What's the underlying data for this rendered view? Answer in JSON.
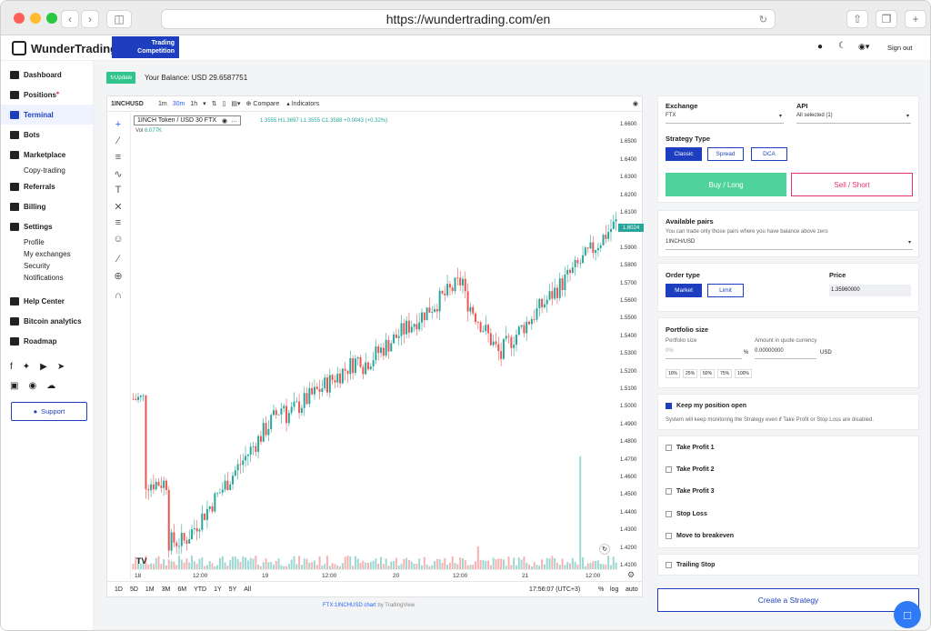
{
  "browser": {
    "url": "https://wundertrading.com/en"
  },
  "header": {
    "brand": "WunderTrading",
    "banner_line1": "Trading",
    "banner_line2": "Competition",
    "signout": "Sign out"
  },
  "sidebar": {
    "items": [
      {
        "label": "Dashboard"
      },
      {
        "label": "Positions"
      },
      {
        "label": "Terminal"
      },
      {
        "label": "Bots"
      },
      {
        "label": "Marketplace"
      },
      {
        "label": "Copy-trading"
      },
      {
        "label": "Referrals"
      },
      {
        "label": "Billing"
      },
      {
        "label": "Settings"
      },
      {
        "label": "Profile"
      },
      {
        "label": "My exchanges"
      },
      {
        "label": "Security"
      },
      {
        "label": "Notifications"
      },
      {
        "label": "Help Center"
      },
      {
        "label": "Bitcoin analytics"
      },
      {
        "label": "Roadmap"
      }
    ],
    "support": "Support"
  },
  "balance": {
    "update": "Update",
    "label": "Your Balance:",
    "value": "USD 29.6587751"
  },
  "chart": {
    "symbol": "1INCHUSD",
    "intervals": [
      "1m",
      "30m",
      "1h"
    ],
    "compare": "Compare",
    "indicators": "Indicators",
    "legend_title": "1INCH Token / USD  30  FTX",
    "ohlc": "1.3555 H1.3697 L1.3555 C1.3588 +0.0043 (+0.32%)",
    "vol_label": "Vol",
    "vol_value": "6.077K",
    "last_price": "1.6024",
    "yticks": [
      "1.6600",
      "1.6500",
      "1.6400",
      "1.6300",
      "1.6200",
      "1.6100",
      "1.6000",
      "1.5900",
      "1.5800",
      "1.5700",
      "1.5600",
      "1.5500",
      "1.5400",
      "1.5300",
      "1.5200",
      "1.5100",
      "1.5000",
      "1.4900",
      "1.4800",
      "1.4700",
      "1.4600",
      "1.4500",
      "1.4400",
      "1.4300",
      "1.4200",
      "1.4100"
    ],
    "xticks": [
      "18",
      "12:00",
      "19",
      "12:00",
      "20",
      "12:00",
      "21",
      "12:00"
    ],
    "ranges": [
      "1D",
      "5D",
      "1M",
      "3M",
      "6M",
      "YTD",
      "1Y",
      "5Y",
      "All"
    ],
    "time": "17:56:07 (UTC+3)",
    "percent": "%",
    "log": "log",
    "auto": "auto",
    "footer_link": "FTX:1INCHUSD chart",
    "footer_by": "by TradingView",
    "colors": {
      "up": "#26a69a",
      "down": "#ef5350"
    }
  },
  "panel": {
    "exchange_label": "Exchange",
    "exchange_value": "FTX",
    "api_label": "API",
    "api_value": "All selected (1)",
    "strategy_type_label": "Strategy Type",
    "strategy_types": [
      "Classic",
      "Spread",
      "DCA"
    ],
    "buy": "Buy / Long",
    "sell": "Sell / Short",
    "pairs_label": "Available pairs",
    "pairs_hint": "You can trade only those pairs where you have balance above zero",
    "pairs_value": "1INCH/USD",
    "order_type_label": "Order type",
    "order_types": [
      "Market",
      "Limit"
    ],
    "price_label": "Price",
    "price_value": "1.35960000",
    "portfolio_label": "Portfolio size",
    "portfolio_size_label": "Portfolio size",
    "portfolio_size_value": "0%",
    "percent_sign": "%",
    "amount_label": "Amount in quote currency",
    "amount_value": "0.00000000",
    "amount_unit": "USD",
    "pcts": [
      "10%",
      "25%",
      "50%",
      "75%",
      "100%"
    ],
    "keep_label": "Keep my position open",
    "keep_hint": "System will keep monitoring the Strategy even if Take Profit or Stop Loss are disabled.",
    "options": [
      "Take Profit 1",
      "Take Profit 2",
      "Take Profit 3",
      "Stop Loss",
      "Move to breakeven"
    ],
    "trailing": "Trailing Stop",
    "create": "Create a Strategy"
  }
}
